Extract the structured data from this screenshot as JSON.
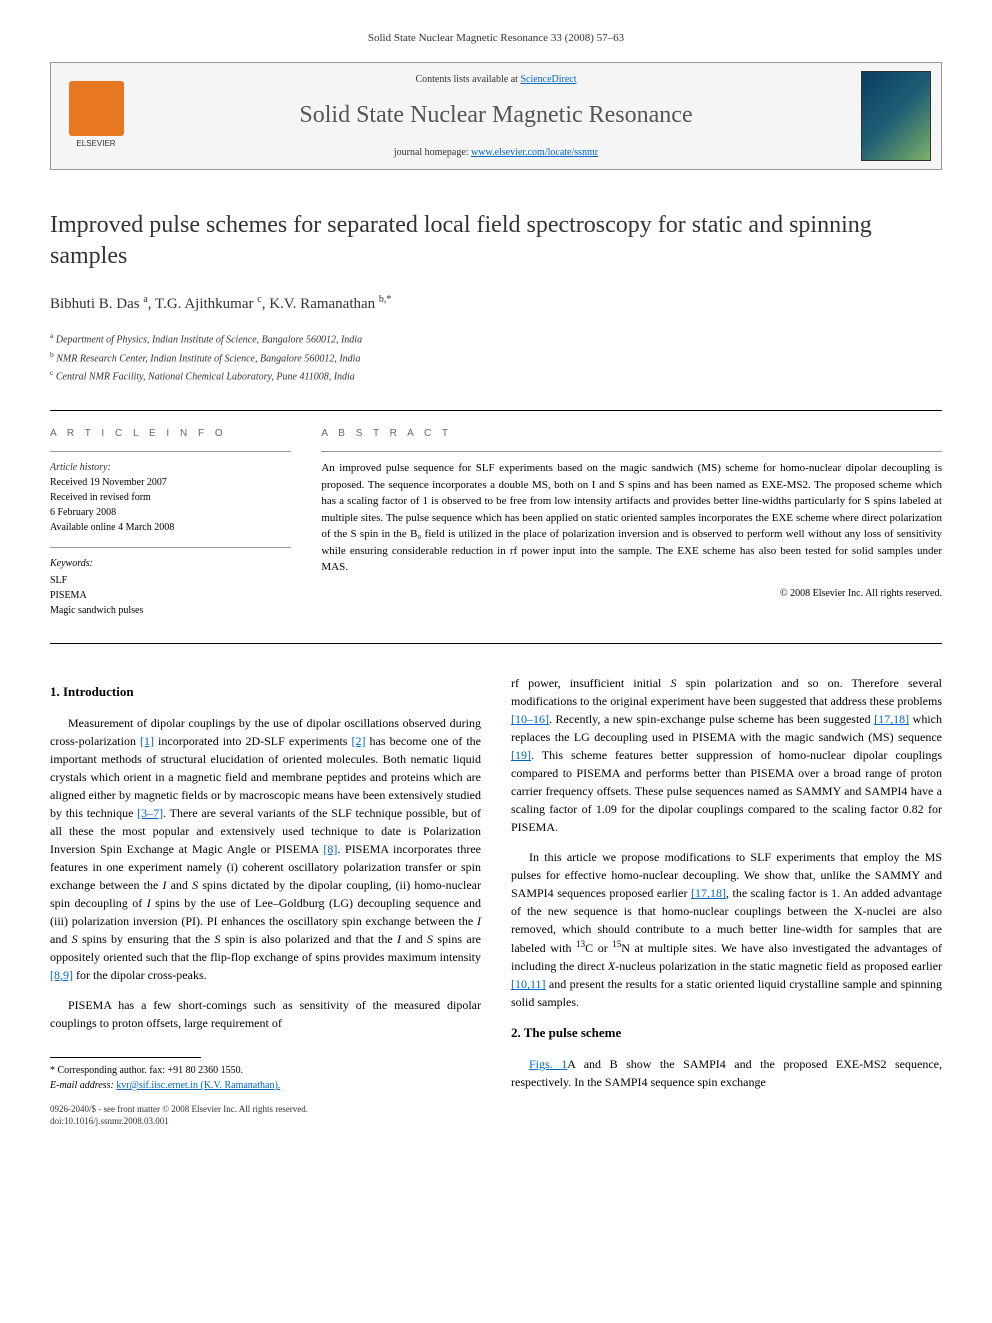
{
  "journal_ref": "Solid State Nuclear Magnetic Resonance 33 (2008) 57–63",
  "header": {
    "contents_prefix": "Contents lists available at ",
    "contents_link": "ScienceDirect",
    "journal_name": "Solid State Nuclear Magnetic Resonance",
    "homepage_prefix": "journal homepage: ",
    "homepage_link": "www.elsevier.com/locate/ssnmr",
    "publisher": "ELSEVIER"
  },
  "title": "Improved pulse schemes for separated local field spectroscopy for static and spinning samples",
  "authors_html": "Bibhuti B. Das <sup>a</sup>, T.G. Ajithkumar <sup>c</sup>, K.V. Ramanathan <sup>b,*</sup>",
  "affiliations": {
    "a": "Department of Physics, Indian Institute of Science, Bangalore 560012, India",
    "b": "NMR Research Center, Indian Institute of Science, Bangalore 560012, India",
    "c": "Central NMR Facility, National Chemical Laboratory, Pune 411008, India"
  },
  "article_info": {
    "heading": "A R T I C L E   I N F O",
    "history_label": "Article history:",
    "received": "Received 19 November 2007",
    "revised": "Received in revised form",
    "revised_date": "6 February 2008",
    "online": "Available online 4 March 2008",
    "keywords_label": "Keywords:",
    "keywords": [
      "SLF",
      "PISEMA",
      "Magic sandwich pulses"
    ]
  },
  "abstract": {
    "heading": "A B S T R A C T",
    "text": "An improved pulse sequence for SLF experiments based on the magic sandwich (MS) scheme for homo-nuclear dipolar decoupling is proposed. The sequence incorporates a double MS, both on I and S spins and has been named as EXE-MS2. The proposed scheme which has a scaling factor of 1 is observed to be free from low intensity artifacts and provides better line-widths particularly for S spins labeled at multiple sites. The pulse sequence which has been applied on static oriented samples incorporates the EXE scheme where direct polarization of the S spin in the B₀ field is utilized in the place of polarization inversion and is observed to perform well without any loss of sensitivity while ensuring considerable reduction in rf power input into the sample. The EXE scheme has also been tested for solid samples under MAS.",
    "copyright": "© 2008 Elsevier Inc. All rights reserved."
  },
  "sections": {
    "intro_heading": "1.  Introduction",
    "intro_p1": "Measurement of dipolar couplings by the use of dipolar oscillations observed during cross-polarization [1] incorporated into 2D-SLF experiments [2] has become one of the important methods of structural elucidation of oriented molecules. Both nematic liquid crystals which orient in a magnetic field and membrane peptides and proteins which are aligned either by magnetic fields or by macroscopic means have been extensively studied by this technique [3–7]. There are several variants of the SLF technique possible, but of all these the most popular and extensively used technique to date is Polarization Inversion Spin Exchange at Magic Angle or PISEMA [8]. PISEMA incorporates three features in one experiment namely (i) coherent oscillatory polarization transfer or spin exchange between the I and S spins dictated by the dipolar coupling, (ii) homo-nuclear spin decoupling of I spins by the use of Lee–Goldburg (LG) decoupling sequence and (iii) polarization inversion (PI). PI enhances the oscillatory spin exchange between the I and S spins by ensuring that the S spin is also polarized and that the I and S spins are oppositely oriented such that the flip-flop exchange of spins provides maximum intensity [8,9] for the dipolar cross-peaks.",
    "intro_p2": "PISEMA has a few short-comings such as sensitivity of the measured dipolar couplings to proton offsets, large requirement of",
    "intro_p3": "rf power, insufficient initial S spin polarization and so on. Therefore several modifications to the original experiment have been suggested that address these problems [10–16]. Recently, a new spin-exchange pulse scheme has been suggested [17,18] which replaces the LG decoupling used in PISEMA with the magic sandwich (MS) sequence [19]. This scheme features better suppression of homo-nuclear dipolar couplings compared to PISEMA and performs better than PISEMA over a broad range of proton carrier frequency offsets. These pulse sequences named as SAMMY and SAMPI4 have a scaling factor of 1.09 for the dipolar couplings compared to the scaling factor 0.82 for PISEMA.",
    "intro_p4": "In this article we propose modifications to SLF experiments that employ the MS pulses for effective homo-nuclear decoupling. We show that, unlike the SAMMY and SAMPI4 sequences proposed earlier [17,18], the scaling factor is 1. An added advantage of the new sequence is that homo-nuclear couplings between the X-nuclei are also removed, which should contribute to a much better line-width for samples that are labeled with ¹³C or ¹⁵N at multiple sites. We have also investigated the advantages of including the direct X-nucleus polarization in the static magnetic field as proposed earlier [10,11] and present the results for a static oriented liquid crystalline sample and spinning solid samples.",
    "scheme_heading": "2.  The pulse scheme",
    "scheme_p1": "Figs. 1A and B show the SAMPI4 and the proposed EXE-MS2 sequence, respectively. In the SAMPI4 sequence spin exchange"
  },
  "footnotes": {
    "corresponding": "* Corresponding author. fax: +91 80 2360 1550.",
    "email_label": "E-mail address: ",
    "email": "kvr@sif.iisc.ernet.in (K.V. Ramanathan)."
  },
  "bottom": {
    "line1": "0926-2040/$ - see front matter © 2008 Elsevier Inc. All rights reserved.",
    "line2": "doi:10.1016/j.ssnmr.2008.03.001"
  },
  "refs": {
    "r1": "[1]",
    "r2": "[2]",
    "r37": "[3–7]",
    "r8": "[8]",
    "r89": "[8,9]",
    "r1016": "[10–16]",
    "r1718": "[17,18]",
    "r19": "[19]",
    "r1011": "[10,11]"
  },
  "colors": {
    "link": "#0066cc",
    "elsevier_orange": "#e87722",
    "text": "#000000",
    "muted": "#666666"
  }
}
